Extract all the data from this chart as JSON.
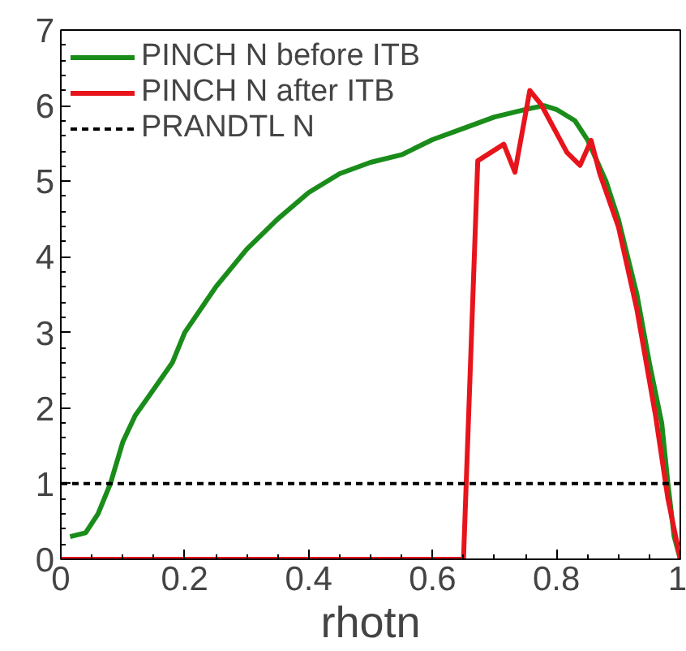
{
  "chart_data": {
    "type": "line",
    "xlabel": "rhotn",
    "xlim": [
      0,
      1
    ],
    "ylim": [
      0,
      7
    ],
    "xticks": [
      0,
      0.2,
      0.4,
      0.6,
      0.8,
      1
    ],
    "yticks": [
      0,
      1,
      2,
      3,
      4,
      5,
      6,
      7
    ],
    "grid": false,
    "legend": "top left",
    "marker": "none",
    "line_style": "solid",
    "series": [
      {
        "name": "PINCH N before ITB",
        "color": "#1a8c1a",
        "x": [
          0.015,
          0.04,
          0.06,
          0.08,
          0.1,
          0.12,
          0.15,
          0.18,
          0.2,
          0.25,
          0.3,
          0.35,
          0.4,
          0.45,
          0.5,
          0.55,
          0.6,
          0.65,
          0.7,
          0.75,
          0.78,
          0.8,
          0.83,
          0.85,
          0.88,
          0.9,
          0.93,
          0.95,
          0.97,
          0.98,
          0.99,
          1.0
        ],
        "values": [
          0.3,
          0.35,
          0.6,
          1.0,
          1.55,
          1.9,
          2.25,
          2.6,
          3.0,
          3.6,
          4.1,
          4.5,
          4.85,
          5.1,
          5.25,
          5.35,
          5.55,
          5.7,
          5.85,
          5.95,
          6.0,
          5.95,
          5.8,
          5.55,
          5.0,
          4.5,
          3.5,
          2.6,
          1.8,
          1.0,
          0.3,
          0
        ]
      },
      {
        "name": "PINCH N after ITB",
        "color": "#e8141c",
        "x": [
          0.0,
          0.65,
          0.673,
          0.715,
          0.733,
          0.757,
          0.775,
          0.817,
          0.838,
          0.856,
          0.87,
          0.9,
          0.93,
          0.96,
          0.98,
          1.0
        ],
        "values": [
          0,
          0,
          5.27,
          5.49,
          5.12,
          6.2,
          6.02,
          5.38,
          5.21,
          5.54,
          5.1,
          4.4,
          3.3,
          1.9,
          0.8,
          0
        ]
      }
    ],
    "ref_lines": [
      {
        "axis": "y",
        "value": 1,
        "label": "PRANDTL N",
        "color": "#000000",
        "line_style": "dashed"
      }
    ]
  }
}
